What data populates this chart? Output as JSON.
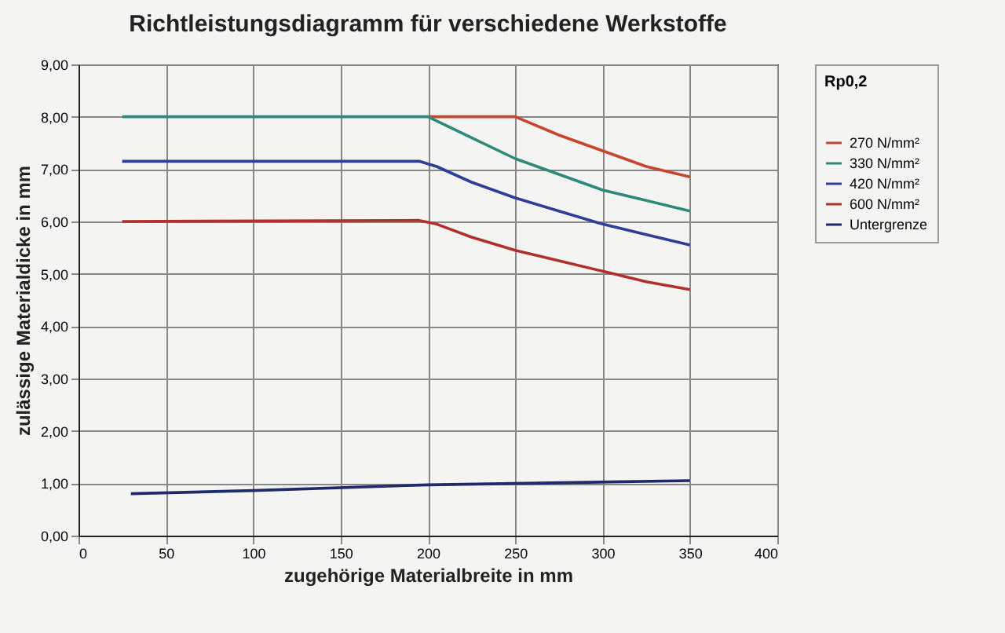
{
  "chart_data": {
    "type": "line",
    "title": "Richtleistungsdiagramm für verschiedene Werkstoffe",
    "xlabel": "zugehörige Materialbreite in mm",
    "ylabel": "zulässige Materialdicke in mm",
    "legend_title": "Rp0,2",
    "legend": "right",
    "grid": true,
    "xlim": [
      0,
      400
    ],
    "xticks": [
      0,
      50,
      100,
      150,
      200,
      250,
      300,
      350,
      400
    ],
    "ylim": [
      0,
      9
    ],
    "yticks": [
      {
        "value": 0,
        "label": "0,00"
      },
      {
        "value": 1,
        "label": "1,00"
      },
      {
        "value": 2,
        "label": "2,00"
      },
      {
        "value": 3,
        "label": "3,00"
      },
      {
        "value": 4,
        "label": "4,00"
      },
      {
        "value": 5,
        "label": "5,00"
      },
      {
        "value": 6,
        "label": "6,00"
      },
      {
        "value": 7,
        "label": "7,00"
      },
      {
        "value": 8,
        "label": "8,00"
      },
      {
        "value": 9,
        "label": "9,00"
      }
    ],
    "series": [
      {
        "name": "270 N/mm²",
        "color": "#c8452f",
        "x": [
          200,
          250,
          275,
          300,
          325,
          350
        ],
        "values": [
          8.0,
          8.0,
          7.65,
          7.35,
          7.05,
          6.85
        ]
      },
      {
        "name": "330 N/mm²",
        "color": "#2e8a78",
        "x": [
          25,
          200,
          225,
          250,
          275,
          300,
          325,
          350
        ],
        "values": [
          8.0,
          8.0,
          7.6,
          7.2,
          6.9,
          6.6,
          6.4,
          6.2
        ]
      },
      {
        "name": "420 N/mm²",
        "color": "#2f3c98",
        "x": [
          25,
          195,
          205,
          225,
          250,
          275,
          300,
          325,
          350
        ],
        "values": [
          7.15,
          7.15,
          7.05,
          6.75,
          6.45,
          6.2,
          5.95,
          5.75,
          5.55
        ]
      },
      {
        "name": "600 N/mm²",
        "color": "#b2302c",
        "x": [
          25,
          195,
          205,
          225,
          250,
          275,
          300,
          325,
          350
        ],
        "values": [
          6.0,
          6.02,
          5.95,
          5.7,
          5.45,
          5.25,
          5.05,
          4.85,
          4.7
        ]
      },
      {
        "name": "Untergrenze",
        "color": "#1f2a6b",
        "x": [
          30,
          100,
          200,
          350
        ],
        "values": [
          0.8,
          0.86,
          0.97,
          1.05
        ]
      }
    ]
  }
}
